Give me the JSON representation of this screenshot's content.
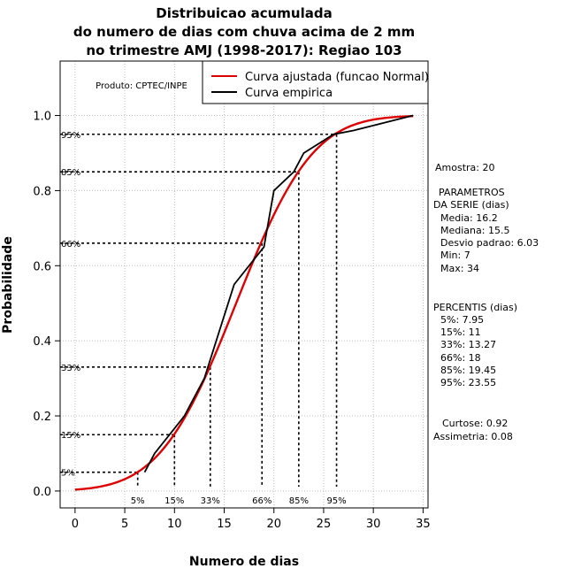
{
  "chart_data": {
    "type": "line",
    "title_lines": [
      "Distribuicao acumulada",
      "do numero de dias com chuva acima de 2 mm",
      "no trimestre AMJ (1998-2017): Regiao 103"
    ],
    "xlabel": "Numero de dias",
    "ylabel": "Probabilidade",
    "xlim": [
      -1.5,
      35.5
    ],
    "ylim": [
      -0.045,
      1.145
    ],
    "x_ticks": [
      "0",
      "5",
      "10",
      "15",
      "20",
      "25",
      "30",
      "35"
    ],
    "y_ticks": [
      "0.0",
      "0.2",
      "0.4",
      "0.6",
      "0.8",
      "1.0"
    ],
    "grid": true,
    "product_label": "Produto: CPTEC/INPE",
    "legend": {
      "position": "top-right",
      "entries": [
        {
          "label": "Curva ajustada (funcao Normal)",
          "color": "#dd0000"
        },
        {
          "label": "Curva empirica",
          "color": "#000000"
        }
      ]
    },
    "fitted_normal": {
      "mean": 16.2,
      "sd": 6.03,
      "x_range": [
        0,
        34
      ]
    },
    "empirical": {
      "x": [
        7,
        8,
        11,
        13,
        16,
        19,
        20,
        22,
        23,
        26,
        28,
        34
      ],
      "y": [
        0.05,
        0.1,
        0.2,
        0.3,
        0.55,
        0.65,
        0.8,
        0.85,
        0.9,
        0.95,
        0.96,
        1.0
      ]
    },
    "percentile_lines": [
      {
        "label": "5%",
        "prob": 0.05,
        "x": 6.3
      },
      {
        "label": "15%",
        "prob": 0.15,
        "x": 10.0
      },
      {
        "label": "33%",
        "prob": 0.33,
        "x": 13.6
      },
      {
        "label": "66%",
        "prob": 0.66,
        "x": 18.8
      },
      {
        "label": "85%",
        "prob": 0.85,
        "x": 22.5
      },
      {
        "label": "95%",
        "prob": 0.95,
        "x": 26.3
      }
    ]
  },
  "side_panel": {
    "amostra": "Amostra: 20",
    "params_title_1": "PARAMETROS",
    "params_title_2": "DA SERIE (dias)",
    "media": "Media: 16.2",
    "mediana": "Mediana: 15.5",
    "desvio": "Desvio padrao: 6.03",
    "min": "Min: 7",
    "max": "Max: 34",
    "percentis_title": "PERCENTIS (dias)",
    "p5": "5%: 7.95",
    "p15": "15%: 11",
    "p33": "33%: 13.27",
    "p66": "66%: 18",
    "p85": "85%: 19.45",
    "p95": "95%: 23.55",
    "curtose": "Curtose: 0.92",
    "assimetria": "Assimetria: 0.08"
  }
}
